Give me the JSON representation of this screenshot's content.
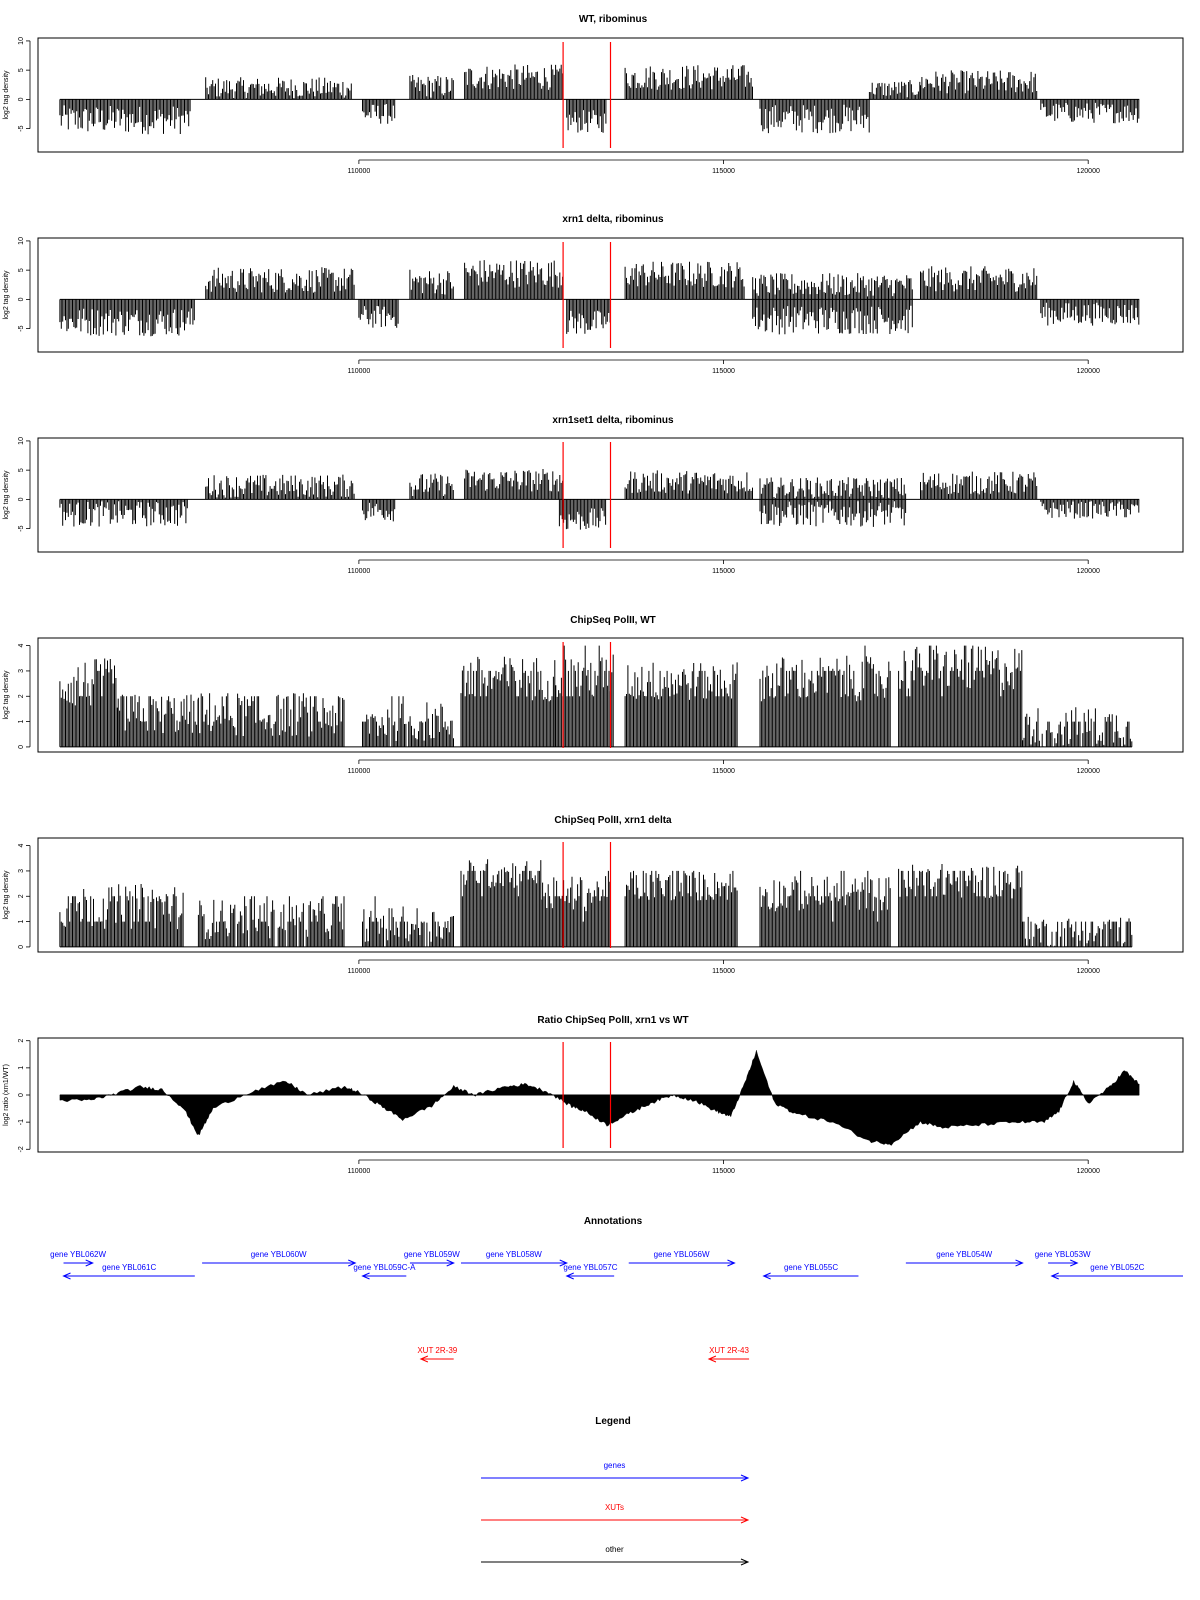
{
  "x_axis": {
    "range": [
      105600,
      121300
    ],
    "ticks": [
      110000,
      115000,
      120000
    ],
    "tick_labels": [
      "110000",
      "115000",
      "120000"
    ]
  },
  "highlight_positions": [
    112800,
    113450
  ],
  "colors": {
    "data": "#000000",
    "axis": "#000000",
    "highlight": "#ff0000",
    "gene": "#0000ff",
    "xut": "#ff0000",
    "other": "#000000"
  },
  "panels": [
    {
      "title": "WT, ribominus",
      "ylabel": "log2 tag density",
      "ylim": [
        -9,
        10.5
      ],
      "yticks": [
        -5,
        0,
        5,
        10
      ],
      "ytick_labels": [
        "-5",
        "0",
        "5",
        "10"
      ],
      "signal": "strand",
      "chart_data": {
        "type": "bar",
        "segments": [
          {
            "x": [
              105900,
              107700
            ],
            "level": -3.5,
            "amp": 2.5
          },
          {
            "x": [
              107900,
              109900
            ],
            "level": 2.0,
            "amp": 1.8
          },
          {
            "x": [
              110050,
              110500
            ],
            "level": -2.5,
            "amp": 1.8
          },
          {
            "x": [
              110700,
              111300
            ],
            "level": 2.2,
            "amp": 2.0
          },
          {
            "x": [
              111450,
              112800
            ],
            "level": 3.8,
            "amp": 2.2
          },
          {
            "x": [
              112850,
              113400
            ],
            "level": -3.8,
            "amp": 2.0
          },
          {
            "x": [
              113650,
              115400
            ],
            "level": 3.8,
            "amp": 2.2
          },
          {
            "x": [
              115500,
              117000
            ],
            "level": -3.3,
            "amp": 2.5
          },
          {
            "x": [
              117000,
              117700
            ],
            "level": 1.8,
            "amp": 1.5
          },
          {
            "x": [
              117700,
              119300
            ],
            "level": 3.0,
            "amp": 2.0
          },
          {
            "x": [
              119350,
              120700
            ],
            "level": -2.3,
            "amp": 1.8
          }
        ]
      }
    },
    {
      "title": "xrn1 delta, ribominus",
      "ylabel": "log2 tag density",
      "ylim": [
        -9,
        10.5
      ],
      "yticks": [
        -5,
        0,
        5,
        10
      ],
      "ytick_labels": [
        "-5",
        "0",
        "5",
        "10"
      ],
      "signal": "strand",
      "chart_data": {
        "type": "bar",
        "segments": [
          {
            "x": [
              105900,
              107750
            ],
            "level": -3.8,
            "amp": 2.5
          },
          {
            "x": [
              107900,
              109950
            ],
            "level": 3.3,
            "amp": 2.2
          },
          {
            "x": [
              110000,
              110550
            ],
            "level": -3.0,
            "amp": 2.0
          },
          {
            "x": [
              110700,
              111300
            ],
            "level": 3.0,
            "amp": 2.2
          },
          {
            "x": [
              111450,
              112800
            ],
            "level": 4.5,
            "amp": 2.5
          },
          {
            "x": [
              112850,
              113450
            ],
            "level": -4.0,
            "amp": 2.2
          },
          {
            "x": [
              113650,
              115300
            ],
            "level": 4.3,
            "amp": 2.3
          },
          {
            "x": [
              115400,
              117600
            ],
            "level": -3.5,
            "amp": 2.5
          },
          {
            "x": [
              115400,
              117600
            ],
            "level": 2.5,
            "amp": 2.0
          },
          {
            "x": [
              117700,
              119300
            ],
            "level": 3.5,
            "amp": 2.2
          },
          {
            "x": [
              119350,
              120700
            ],
            "level": -2.5,
            "amp": 2.0
          }
        ]
      }
    },
    {
      "title": "xrn1set1 delta, ribominus",
      "ylabel": "log2 tag density",
      "ylim": [
        -9,
        10.5
      ],
      "yticks": [
        -5,
        0,
        5,
        10
      ],
      "ytick_labels": [
        "-5",
        "0",
        "5",
        "10"
      ],
      "signal": "strand",
      "chart_data": {
        "type": "bar",
        "segments": [
          {
            "x": [
              105900,
              107650
            ],
            "level": -2.5,
            "amp": 2.2
          },
          {
            "x": [
              107900,
              109950
            ],
            "level": 2.3,
            "amp": 2.0
          },
          {
            "x": [
              110050,
              110500
            ],
            "level": -2.0,
            "amp": 1.8
          },
          {
            "x": [
              110700,
              111300
            ],
            "level": 2.5,
            "amp": 2.0
          },
          {
            "x": [
              111450,
              112800
            ],
            "level": 3.3,
            "amp": 2.0
          },
          {
            "x": [
              112750,
              113400
            ],
            "level": -3.5,
            "amp": 2.0
          },
          {
            "x": [
              113650,
              115400
            ],
            "level": 3.0,
            "amp": 2.0
          },
          {
            "x": [
              115500,
              117500
            ],
            "level": -2.5,
            "amp": 2.2
          },
          {
            "x": [
              115500,
              117500
            ],
            "level": 2.0,
            "amp": 1.8
          },
          {
            "x": [
              117700,
              119300
            ],
            "level": 2.8,
            "amp": 2.0
          },
          {
            "x": [
              119350,
              120700
            ],
            "level": -1.8,
            "amp": 1.5
          }
        ]
      }
    },
    {
      "title": "ChipSeq PolII, WT",
      "ylabel": "log2 tag density",
      "ylim": [
        -0.2,
        4.3
      ],
      "yticks": [
        0,
        1,
        2,
        3,
        4
      ],
      "ytick_labels": [
        "0",
        "1",
        "2",
        "3",
        "4"
      ],
      "signal": "positive",
      "chart_data": {
        "type": "bar",
        "segments": [
          {
            "x": [
              105900,
              106700
            ],
            "level": 2.5,
            "amp": 1.0
          },
          {
            "x": [
              106700,
              107800
            ],
            "level": 1.3,
            "amp": 0.8
          },
          {
            "x": [
              107800,
              109800
            ],
            "level": 1.3,
            "amp": 0.9
          },
          {
            "x": [
              110050,
              111300
            ],
            "level": 1.0,
            "amp": 0.8
          },
          {
            "x": [
              111400,
              112700
            ],
            "level": 2.7,
            "amp": 0.9
          },
          {
            "x": [
              112700,
              113500
            ],
            "level": 2.8,
            "amp": 0.9
          },
          {
            "x": [
              113650,
              115200
            ],
            "level": 2.6,
            "amp": 0.8
          },
          {
            "x": [
              115500,
              117300
            ],
            "level": 2.7,
            "amp": 0.9
          },
          {
            "x": [
              117400,
              119100
            ],
            "level": 3.1,
            "amp": 0.9
          },
          {
            "x": [
              119100,
              120600
            ],
            "level": 0.8,
            "amp": 0.8
          }
        ]
      }
    },
    {
      "title": "ChipSeq PolII, xrn1 delta",
      "ylabel": "log2 tag density",
      "ylim": [
        -0.2,
        4.3
      ],
      "yticks": [
        0,
        1,
        2,
        3,
        4
      ],
      "ytick_labels": [
        "0",
        "1",
        "2",
        "3",
        "4"
      ],
      "signal": "positive",
      "chart_data": {
        "type": "bar",
        "segments": [
          {
            "x": [
              105900,
              107600
            ],
            "level": 1.6,
            "amp": 0.9
          },
          {
            "x": [
              107800,
              109800
            ],
            "level": 1.1,
            "amp": 0.8
          },
          {
            "x": [
              110050,
              111300
            ],
            "level": 0.9,
            "amp": 0.7
          },
          {
            "x": [
              111400,
              112500
            ],
            "level": 2.9,
            "amp": 0.6
          },
          {
            "x": [
              112500,
              113450
            ],
            "level": 2.1,
            "amp": 0.7
          },
          {
            "x": [
              113650,
              115200
            ],
            "level": 2.4,
            "amp": 0.6
          },
          {
            "x": [
              115500,
              117300
            ],
            "level": 2.1,
            "amp": 0.7
          },
          {
            "x": [
              117400,
              119100
            ],
            "level": 2.6,
            "amp": 0.7
          },
          {
            "x": [
              119100,
              120600
            ],
            "level": 0.6,
            "amp": 0.6
          }
        ]
      }
    },
    {
      "title": "Ratio ChipSeq PolII, xrn1 vs WT",
      "ylabel": "log2 ratio (xrn1/WT)",
      "ylim": [
        -2.1,
        2.1
      ],
      "yticks": [
        -2,
        -1,
        0,
        1,
        2
      ],
      "ytick_labels": [
        "-2",
        "-1",
        "0",
        "1",
        "2"
      ],
      "signal": "ratio",
      "chart_data": {
        "type": "area",
        "x": [
          105900,
          106300,
          106600,
          107000,
          107300,
          107600,
          107800,
          108000,
          108500,
          109000,
          109300,
          109800,
          110000,
          110300,
          110600,
          111000,
          111300,
          111600,
          112000,
          112300,
          112600,
          112900,
          113100,
          113400,
          113700,
          114000,
          114300,
          114600,
          114900,
          115100,
          115300,
          115450,
          115700,
          116000,
          116500,
          117000,
          117300,
          117700,
          118000,
          118500,
          119000,
          119400,
          119600,
          119800,
          120000,
          120300,
          120500,
          120700
        ],
        "y": [
          -0.2,
          -0.2,
          0.0,
          0.3,
          0.2,
          -0.5,
          -1.5,
          -0.5,
          0.1,
          0.5,
          0.0,
          0.3,
          0.1,
          -0.4,
          -0.9,
          -0.4,
          0.3,
          0.0,
          0.3,
          0.4,
          0.1,
          -0.4,
          -0.6,
          -1.1,
          -0.7,
          -0.3,
          0.0,
          -0.2,
          -0.6,
          -0.8,
          0.5,
          1.6,
          -0.3,
          -0.7,
          -1.0,
          -1.7,
          -1.8,
          -1.0,
          -1.2,
          -1.1,
          -1.0,
          -1.0,
          -0.6,
          0.5,
          -0.3,
          0.3,
          0.9,
          0.4
        ]
      }
    }
  ],
  "annotations": {
    "title": "Annotations",
    "features": [
      {
        "label": "gene YBL062W",
        "start": 105950,
        "end": 106350,
        "strand": "+",
        "type": "gene",
        "row": 1
      },
      {
        "label": "gene YBL061C",
        "start": 105950,
        "end": 107750,
        "strand": "-",
        "type": "gene",
        "row": 2
      },
      {
        "label": "gene YBL060W",
        "start": 107850,
        "end": 109950,
        "strand": "+",
        "type": "gene",
        "row": 1
      },
      {
        "label": "gene YBL059C-A",
        "start": 110050,
        "end": 110650,
        "strand": "-",
        "type": "gene",
        "row": 2
      },
      {
        "label": "gene YBL059W",
        "start": 110700,
        "end": 111300,
        "strand": "+",
        "type": "gene",
        "row": 1
      },
      {
        "label": "gene YBL058W",
        "start": 111400,
        "end": 112850,
        "strand": "+",
        "type": "gene",
        "row": 1
      },
      {
        "label": "gene YBL057C",
        "start": 112850,
        "end": 113500,
        "strand": "-",
        "type": "gene",
        "row": 2
      },
      {
        "label": "gene YBL056W",
        "start": 113700,
        "end": 115150,
        "strand": "+",
        "type": "gene",
        "row": 1
      },
      {
        "label": "gene YBL055C",
        "start": 115550,
        "end": 116850,
        "strand": "-",
        "type": "gene",
        "row": 2
      },
      {
        "label": "gene YBL054W",
        "start": 117500,
        "end": 119100,
        "strand": "+",
        "type": "gene",
        "row": 1
      },
      {
        "label": "gene YBL053W",
        "start": 119450,
        "end": 119850,
        "strand": "+",
        "type": "gene",
        "row": 1
      },
      {
        "label": "gene YBL052C",
        "start": 119500,
        "end": 121300,
        "strand": "-",
        "type": "gene",
        "row": 2
      },
      {
        "label": "XUT 2R-39",
        "start": 110850,
        "end": 111300,
        "strand": "-",
        "type": "xut",
        "row": 3
      },
      {
        "label": "XUT 2R-43",
        "start": 114800,
        "end": 115350,
        "strand": "-",
        "type": "xut",
        "row": 3
      }
    ]
  },
  "legend": {
    "title": "Legend",
    "items": [
      {
        "label": "genes",
        "color": "#0000ff"
      },
      {
        "label": "XUTs",
        "color": "#ff0000"
      },
      {
        "label": "other",
        "color": "#000000"
      }
    ]
  }
}
